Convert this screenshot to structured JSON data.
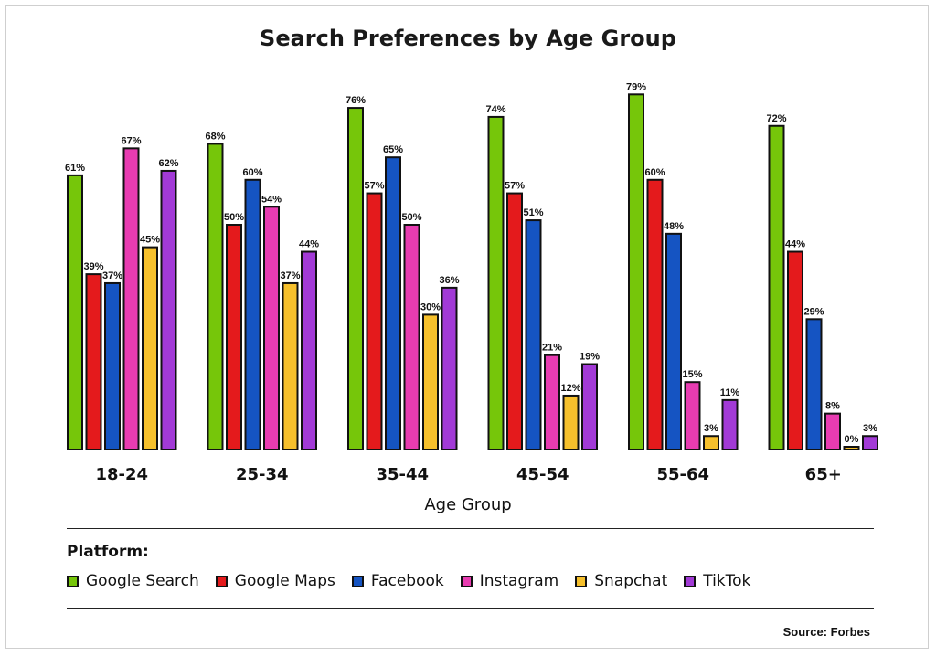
{
  "chart_data": {
    "type": "bar",
    "title": "Search Preferences by Age Group",
    "xlabel": "Age Group",
    "ylabel": "",
    "ylim": [
      0,
      80
    ],
    "categories": [
      "18-24",
      "25-34",
      "35-44",
      "45-54",
      "55-64",
      "65+"
    ],
    "legend_title": "Platform:",
    "legend_position": "bottom",
    "series": [
      {
        "name": "Google Search",
        "color": "#76c60a",
        "values": [
          61,
          68,
          76,
          74,
          79,
          72
        ]
      },
      {
        "name": "Google Maps",
        "color": "#e41a1c",
        "values": [
          39,
          50,
          57,
          57,
          60,
          44
        ]
      },
      {
        "name": "Facebook",
        "color": "#1554c2",
        "values": [
          37,
          60,
          65,
          51,
          48,
          29
        ]
      },
      {
        "name": "Instagram",
        "color": "#e83cb1",
        "values": [
          67,
          54,
          50,
          21,
          15,
          8
        ]
      },
      {
        "name": "Snapchat",
        "color": "#f6c02c",
        "values": [
          45,
          37,
          30,
          12,
          3,
          0
        ]
      },
      {
        "name": "TikTok",
        "color": "#a23ad6",
        "values": [
          62,
          44,
          36,
          19,
          11,
          3
        ]
      }
    ],
    "source": "Source: Forbes"
  }
}
